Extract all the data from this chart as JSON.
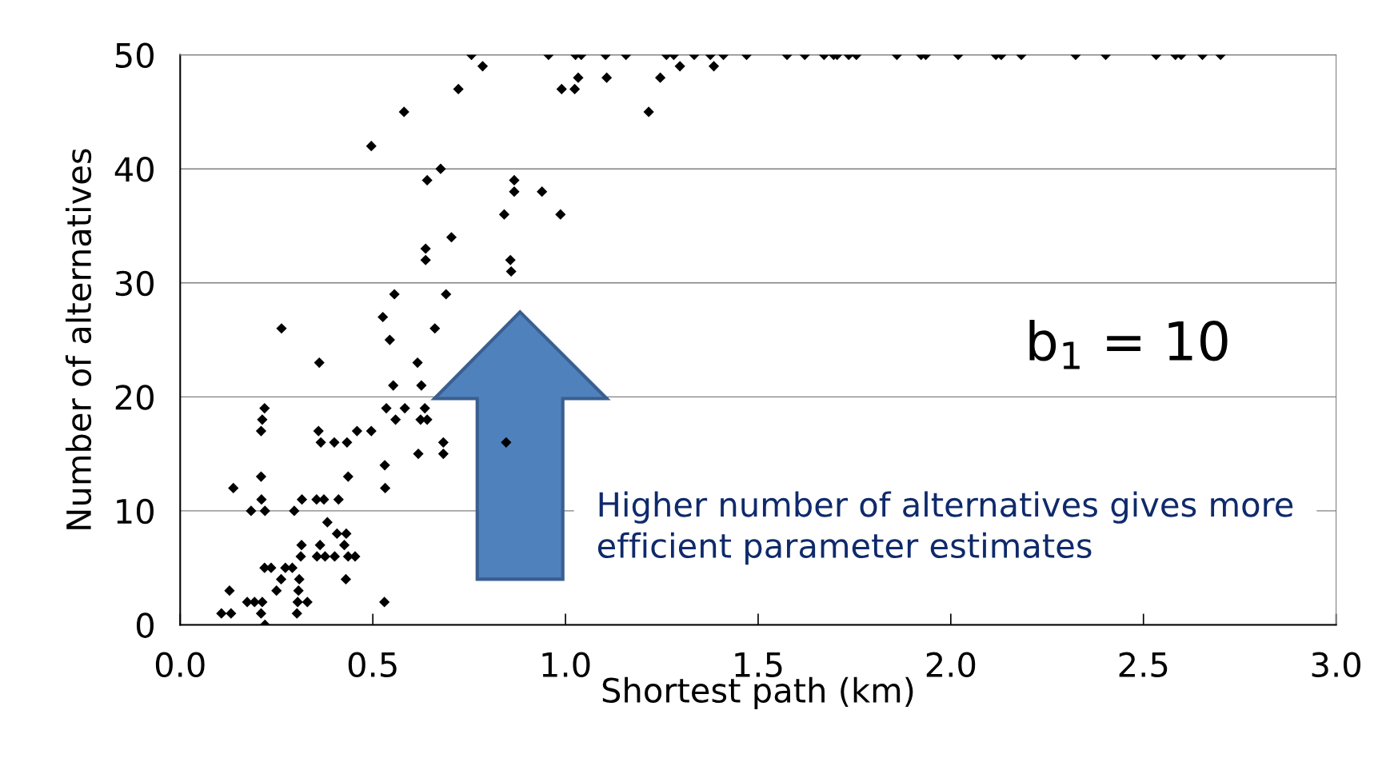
{
  "chart_data": {
    "type": "scatter",
    "xlabel": "Shortest path (km)",
    "ylabel": "Number of alternatives",
    "marker": "diamond",
    "grid": "y",
    "xlim": [
      0,
      3
    ],
    "xticks": [
      {
        "value": 0,
        "label": "0.0"
      },
      {
        "value": 0.5,
        "label": "0.5"
      },
      {
        "value": 1,
        "label": "1.0"
      },
      {
        "value": 1.5,
        "label": "1.5"
      },
      {
        "value": 2,
        "label": "2.0"
      },
      {
        "value": 2.5,
        "label": "2.5"
      },
      {
        "value": 3,
        "label": "3.0"
      }
    ],
    "ylim": [
      0,
      50
    ],
    "yticks": [
      0,
      10,
      20,
      30,
      40,
      50
    ],
    "annotations": [
      "b$_{1}$ = 10",
      "Higher number of alternatives gives more efficient parameter estimates"
    ],
    "series": [
      {
        "color": "#000000",
        "x": [
          0.756,
          0.956,
          1.026,
          1.041,
          1.104,
          1.157,
          1.262,
          1.281,
          1.334,
          1.376,
          1.41,
          1.47,
          1.575,
          1.621,
          1.671,
          1.696,
          1.705,
          1.735,
          1.755,
          1.86,
          1.923,
          1.935,
          2.019,
          2.117,
          2.131,
          2.183,
          2.324,
          2.402,
          2.533,
          2.583,
          2.598,
          2.653,
          2.7,
          0.785,
          0.722,
          1.033,
          0.99,
          1.024,
          1.107,
          1.246,
          1.297,
          1.385,
          1.216,
          0.581,
          0.496,
          0.676,
          0.641,
          0.867,
          0.867,
          0.939,
          0.841,
          0.987,
          0.704,
          0.637,
          0.637,
          0.857,
          0.859,
          0.556,
          0.69,
          0.526,
          0.263,
          0.661,
          0.544,
          0.361,
          0.616,
          0.553,
          0.626,
          0.219,
          0.535,
          0.583,
          0.635,
          0.213,
          0.559,
          0.624,
          0.641,
          0.21,
          0.359,
          0.459,
          0.496,
          0.365,
          0.4,
          0.433,
          0.683,
          0.846,
          0.618,
          0.683,
          0.531,
          0.21,
          0.436,
          0.138,
          0.532,
          0.211,
          0.316,
          0.354,
          0.373,
          0.411,
          0.184,
          0.22,
          0.296,
          0.382,
          0.407,
          0.431,
          0.315,
          0.363,
          0.426,
          0.313,
          0.355,
          0.376,
          0.401,
          0.436,
          0.454,
          0.219,
          0.236,
          0.273,
          0.291,
          0.262,
          0.309,
          0.43,
          0.128,
          0.25,
          0.307,
          0.174,
          0.193,
          0.213,
          0.305,
          0.33,
          0.53,
          0.107,
          0.132,
          0.21,
          0.303,
          0.22
        ],
        "values": [
          50,
          50,
          50,
          50,
          50,
          50,
          50,
          50,
          50,
          50,
          50,
          50,
          50,
          50,
          50,
          50,
          50,
          50,
          50,
          50,
          50,
          50,
          50,
          50,
          50,
          50,
          50,
          50,
          50,
          50,
          50,
          50,
          50,
          49,
          47,
          48,
          47,
          47,
          48,
          48,
          49,
          49,
          45,
          45,
          42,
          40,
          39,
          39,
          38,
          38,
          36,
          36,
          34,
          33,
          32,
          32,
          31,
          29,
          29,
          27,
          26,
          26,
          25,
          23,
          23,
          21,
          21,
          19,
          19,
          19,
          19,
          18,
          18,
          18,
          18,
          17,
          17,
          17,
          17,
          16,
          16,
          16,
          16,
          16,
          15,
          15,
          14,
          13,
          13,
          12,
          12,
          11,
          11,
          11,
          11,
          11,
          10,
          10,
          10,
          9,
          8,
          8,
          7,
          7,
          7,
          6,
          6,
          6,
          6,
          6,
          6,
          5,
          5,
          5,
          5,
          4,
          4,
          4,
          3,
          3,
          3,
          2,
          2,
          2,
          2,
          2,
          2,
          1,
          1,
          1,
          1,
          0
        ]
      }
    ]
  }
}
